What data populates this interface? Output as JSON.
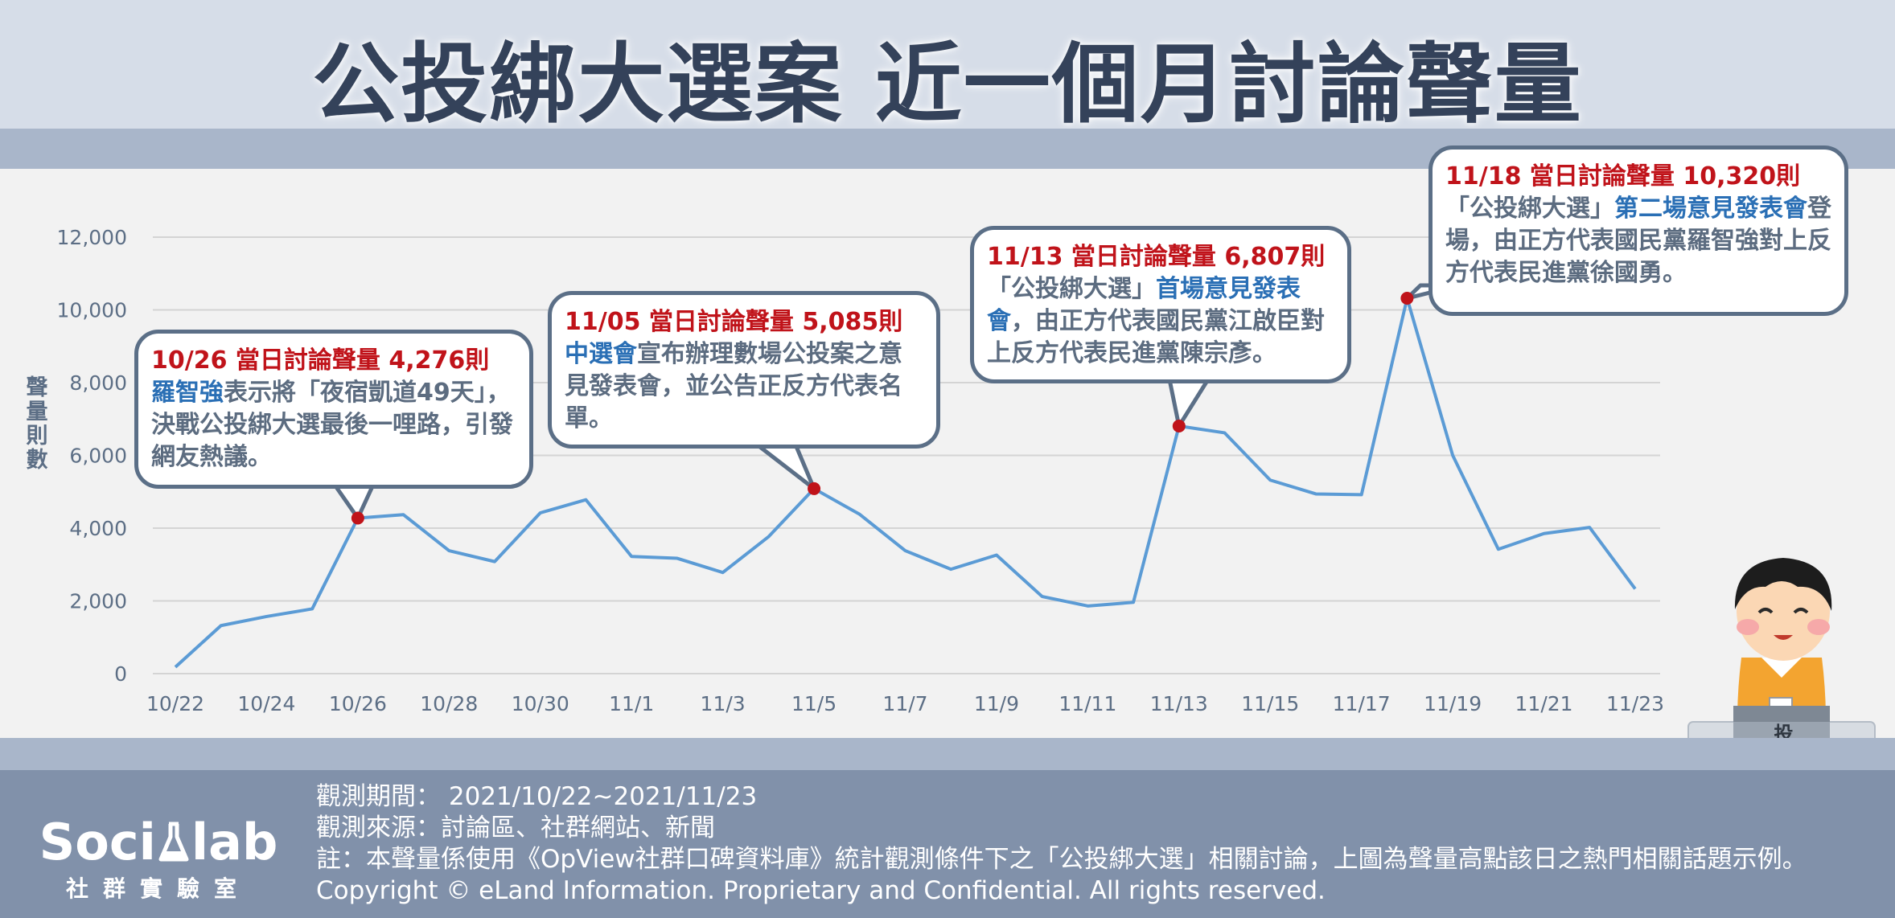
{
  "title": "公投綁大選案 近一個月討論聲量",
  "chart_data": {
    "type": "line",
    "title": "公投綁大選案 近一個月討論聲量",
    "ylabel": "聲量則數",
    "xlabel": "",
    "ylim": [
      0,
      12000
    ],
    "yticks": [
      "0",
      "2,000",
      "4,000",
      "6,000",
      "8,000",
      "10,000",
      "12,000"
    ],
    "xtick_labels": [
      "10/22",
      "10/24",
      "10/26",
      "10/28",
      "10/30",
      "11/1",
      "11/3",
      "11/5",
      "11/7",
      "11/9",
      "11/11",
      "11/13",
      "11/15",
      "11/17",
      "11/19",
      "11/21",
      "11/23"
    ],
    "grid": true,
    "color": "#5b9bd5",
    "marker_color": "#c0131a",
    "x": [
      "10/22",
      "10/23",
      "10/24",
      "10/25",
      "10/26",
      "10/27",
      "10/28",
      "10/29",
      "10/30",
      "10/31",
      "11/1",
      "11/2",
      "11/3",
      "11/4",
      "11/5",
      "11/6",
      "11/7",
      "11/8",
      "11/9",
      "11/10",
      "11/11",
      "11/12",
      "11/13",
      "11/14",
      "11/15",
      "11/16",
      "11/17",
      "11/18",
      "11/19",
      "11/20",
      "11/21",
      "11/22",
      "11/23"
    ],
    "values": [
      180,
      1320,
      1570,
      1780,
      4276,
      4370,
      3380,
      3080,
      4420,
      4780,
      3220,
      3170,
      2780,
      3760,
      5085,
      4380,
      3380,
      2870,
      3260,
      2120,
      1860,
      1960,
      6807,
      6620,
      5320,
      4940,
      4920,
      10320,
      6000,
      3420,
      3850,
      4020,
      2330
    ],
    "highlights": [
      "10/26",
      "11/5",
      "11/13",
      "11/18"
    ]
  },
  "annotations": [
    {
      "headline": "10/26 當日討論聲量 4,276則",
      "kw": "羅智強",
      "body": "表示將「夜宿凱道49天」，決戰公投綁大選最後一哩路，引發網友熱議。"
    },
    {
      "headline": "11/05 當日討論聲量 5,085則",
      "kw": "中選會",
      "body": "宣布辦理數場公投案之意見發表會，並公告正反方代表名單。"
    },
    {
      "headline": "11/13 當日討論聲量 6,807則",
      "pre": "「公投綁大選」",
      "kw": "首場意見發表會",
      "body": "，由正方代表國民黨江啟臣對上反方代表民進黨陳宗彥。"
    },
    {
      "headline": "11/18 當日討論聲量 10,320則",
      "pre": "「公投綁大選」",
      "kw": "第二場意見發表會",
      "body": "登場，由正方代表國民黨羅智強對上反方代表民進黨徐國勇。"
    }
  ],
  "ballot_box_label": "投票箱",
  "logo": {
    "main_left": "Soci",
    "main_right": "lab",
    "sub": "社群實驗室"
  },
  "footer": {
    "period": "觀測期間： 2021/10/22~2021/11/23",
    "source": "觀測來源：討論區、社群網站、新聞",
    "note": "註：本聲量係使用《OpView社群口碑資料庫》統計觀測條件下之「公投綁大選」相關討論，上圖為聲量高點該日之熱門相關話題示例。",
    "copyright": "Copyright © eLand Information. Proprietary and Confidential. All rights reserved."
  }
}
